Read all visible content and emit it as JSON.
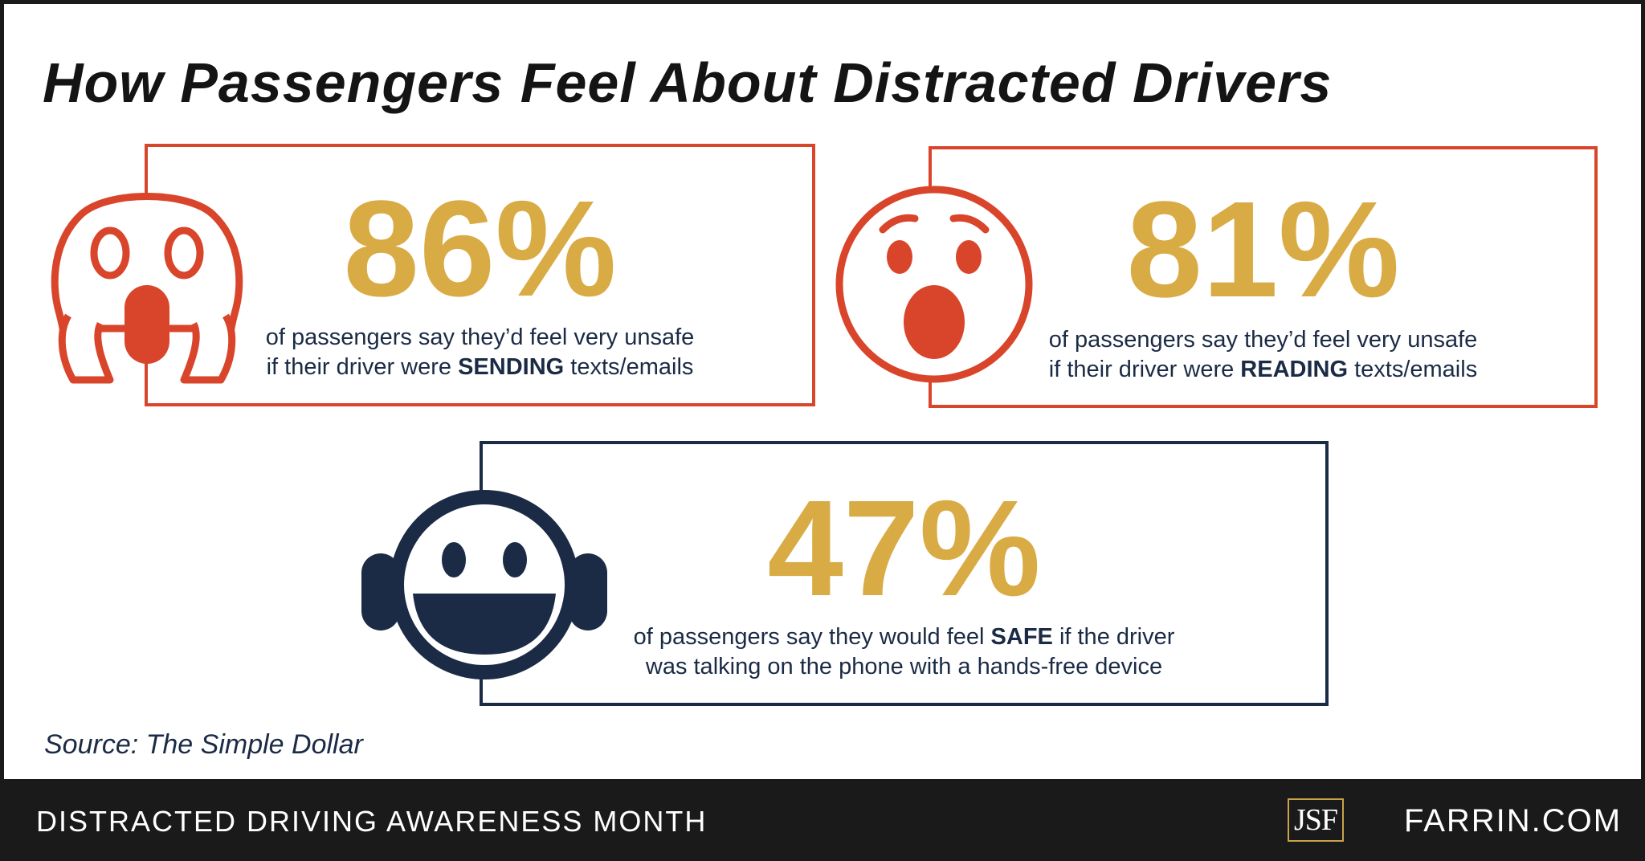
{
  "title": "How Passengers Feel About Distracted Drivers",
  "stats": [
    {
      "value": "86%",
      "line1": "of passengers say they’d feel very unsafe",
      "line2_pre": "if their driver were ",
      "line2_bold": "SENDING",
      "line2_post": " texts/emails",
      "icon": "screaming-face-icon"
    },
    {
      "value": "81%",
      "line1": "of passengers say they’d feel very unsafe",
      "line2_pre": "if their driver were ",
      "line2_bold": "READING",
      "line2_post": " texts/emails",
      "icon": "astonished-face-icon"
    },
    {
      "value": "47%",
      "line1_pre": "of passengers say they would feel ",
      "line1_bold": "SAFE",
      "line1_post": " if the driver",
      "line2": "was talking on the phone with a hands-free device",
      "icon": "headphones-smiley-icon"
    }
  ],
  "source": "Source: The Simple Dollar",
  "footer": {
    "campaign": "DISTRACTED DRIVING AWARENESS MONTH",
    "logo": "JSF",
    "site": "FARRIN.COM"
  },
  "colors": {
    "orange": "#d9452b",
    "gold": "#d9ab45",
    "navy": "#1b2b45",
    "footer_bg": "#1a1a1a"
  }
}
